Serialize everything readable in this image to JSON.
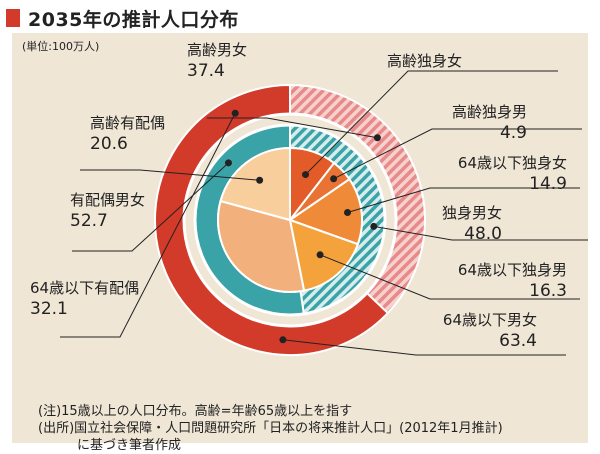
{
  "title": "2035年の推計人口分布",
  "unit_label": "(単位:100万人)",
  "chart_data": [
    {
      "type": "pie",
      "ring": "outer",
      "slices": [
        {
          "name": "高齢男女",
          "value": 37.4,
          "color": "#e88a8a",
          "pattern": "hatch"
        },
        {
          "name": "64歳以下男女",
          "value": 63.4,
          "color": "#d23a2a",
          "pattern": "solid"
        }
      ]
    },
    {
      "type": "pie",
      "ring": "middle",
      "slices": [
        {
          "name": "独身男女",
          "value": 48.0,
          "color": "#3aa3a8",
          "pattern": "hatch"
        },
        {
          "name": "有配偶男女",
          "value": 52.7,
          "color": "#3aa3a8",
          "pattern": "solid"
        }
      ]
    },
    {
      "type": "pie",
      "ring": "inner",
      "slices": [
        {
          "name": "高齢独身女",
          "value": 10.4,
          "color": "#e45b2a"
        },
        {
          "name": "高齢独身男",
          "value": 4.9,
          "color": "#e87334"
        },
        {
          "name": "64歳以下独身女",
          "value": 14.9,
          "color": "#ee8a38"
        },
        {
          "name": "64歳以下独身男",
          "value": 16.3,
          "color": "#f3a23c"
        },
        {
          "name": "64歳以下有配偶",
          "value": 32.1,
          "color": "#f2b17c"
        },
        {
          "name": "高齢有配偶",
          "value": 20.6,
          "color": "#f8cf9c"
        }
      ]
    }
  ],
  "labels": {
    "elderly_total": {
      "name": "高齢男女",
      "value": "37.4"
    },
    "elderly_married": {
      "name": "高齢有配偶",
      "value": "20.6"
    },
    "married_total": {
      "name": "有配偶男女",
      "value": "52.7"
    },
    "young_married": {
      "name": "64歳以下有配偶",
      "value": "32.1"
    },
    "elderly_single_female": {
      "name": "高齢独身女",
      "value": ""
    },
    "elderly_single_male": {
      "name": "高齢独身男",
      "value": "4.9"
    },
    "young_single_female": {
      "name": "64歳以下独身女",
      "value": "14.9"
    },
    "single_total": {
      "name": "独身男女",
      "value": "48.0"
    },
    "young_single_male": {
      "name": "64歳以下独身男",
      "value": "16.3"
    },
    "young_total": {
      "name": "64歳以下男女",
      "value": "63.4"
    }
  },
  "notes": [
    "(注)15歳以上の人口分布。高齢=年齢65歳以上を指す",
    "(出所)国立社会保障・人口問題研究所「日本の将来推計人口」(2012年1月推計)",
    "　　　に基づき筆者作成"
  ]
}
